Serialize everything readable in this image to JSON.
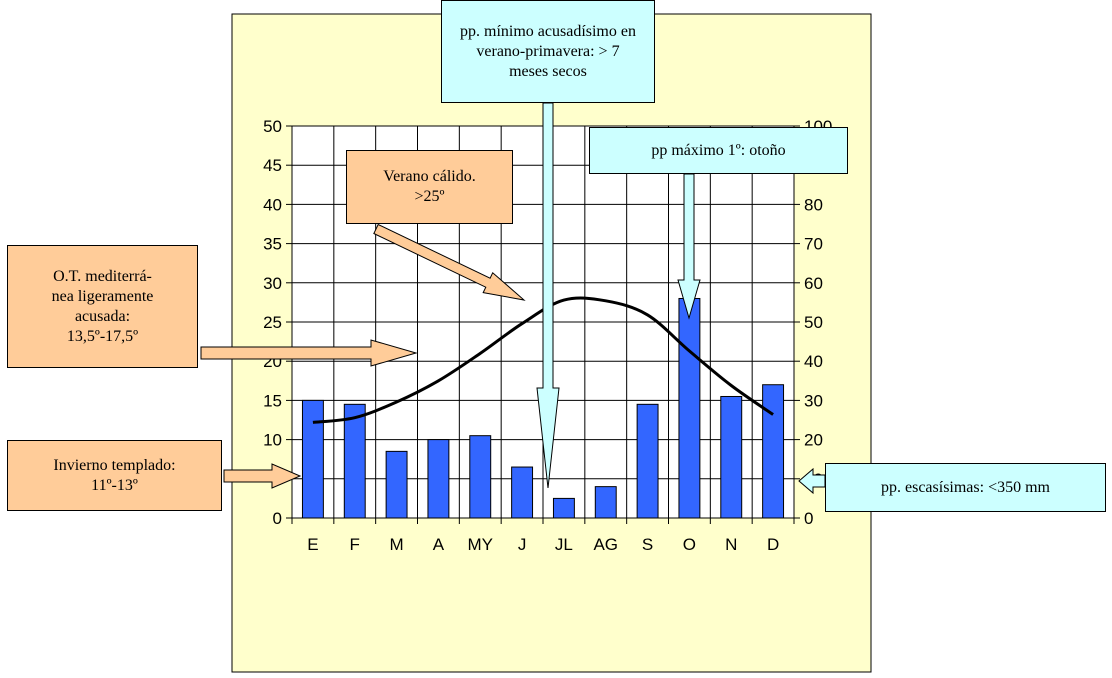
{
  "colors": {
    "panel_bg": "#ffffcc",
    "plot_bg": "#ffffff",
    "bar": "#3366ff",
    "line": "#000000",
    "peach": "#ffcc99",
    "cyan": "#ccffff"
  },
  "chart_data": {
    "type": "bar",
    "categories": [
      "E",
      "F",
      "M",
      "A",
      "MY",
      "J",
      "JL",
      "AG",
      "S",
      "O",
      "N",
      "D"
    ],
    "series": [
      {
        "type": "bar",
        "axis": "right",
        "values": [
          30,
          29,
          17,
          20,
          21,
          13,
          5,
          8,
          29,
          56,
          31,
          34
        ]
      },
      {
        "type": "line",
        "axis": "left",
        "values": [
          12.2,
          12.8,
          14.8,
          17.5,
          21,
          24.8,
          27.8,
          27.7,
          25.9,
          21.3,
          16.9,
          13.2
        ]
      }
    ],
    "y_left": {
      "min": 0,
      "max": 50,
      "step": 5
    },
    "y_right": {
      "min": 0,
      "max": 100,
      "step": 10
    },
    "grid": true,
    "legend": "none"
  },
  "annotations": {
    "pp_minimo": "pp. mínimo acusadísimo en\nverano-primavera: > 7\nmeses secos",
    "verano": "Verano cálido.\n>25º",
    "pp_maximo": "pp máximo 1º: otoño",
    "ot_med": "O.T. mediterrá-\nnea ligeramente\nacusada:\n13,5º-17,5º",
    "invierno": "Invierno templado:\n11º-13º",
    "pp_escasas": "pp. escasísimas: <350 mm"
  }
}
